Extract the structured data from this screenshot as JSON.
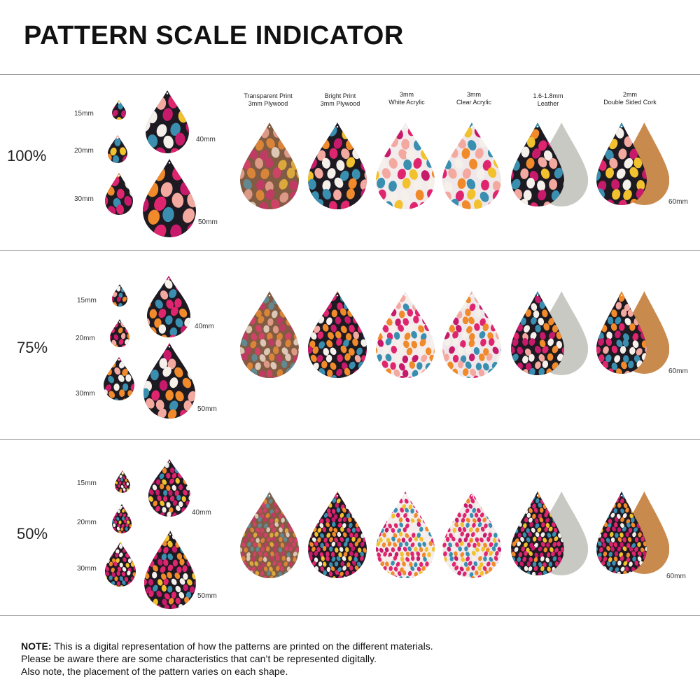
{
  "title": "PATTERN SCALE INDICATOR",
  "materials": [
    {
      "line1": "Transparent Print",
      "line2": "3mm Plywood"
    },
    {
      "line1": "Bright Print",
      "line2": "3mm Plywood"
    },
    {
      "line1": "3mm",
      "line2": "White Acrylic"
    },
    {
      "line1": "3mm",
      "line2": "Clear Acrylic"
    },
    {
      "line1": "1.6-1.8mm",
      "line2": "Leather"
    },
    {
      "line1": "2mm",
      "line2": "Double Sided Cork"
    }
  ],
  "size_labels": {
    "s15": "15mm",
    "s20": "20mm",
    "s30": "30mm",
    "s40": "40mm",
    "s50": "50mm",
    "s60": "60mm"
  },
  "sections": [
    {
      "scale": "100%"
    },
    {
      "scale": "75%"
    },
    {
      "scale": "50%"
    }
  ],
  "colors": {
    "pink": "#e0256f",
    "magenta": "#c81a6a",
    "orange": "#f08a2a",
    "teal": "#3a8fb0",
    "white": "#f5f0ea",
    "peach": "#f4a9a0",
    "yellow": "#f2c12e",
    "dark": "#1e1a22",
    "leather": "#c9c9c4",
    "cork": "#c98a4e"
  },
  "note": {
    "bold": "NOTE:",
    "line1": " This is a digital representation of how the patterns are printed on the different materials.",
    "line2": "Please be aware there are some characteristics that can’t be represented digitally.",
    "line3": "Also note, the placement of the pattern varies on each shape."
  }
}
